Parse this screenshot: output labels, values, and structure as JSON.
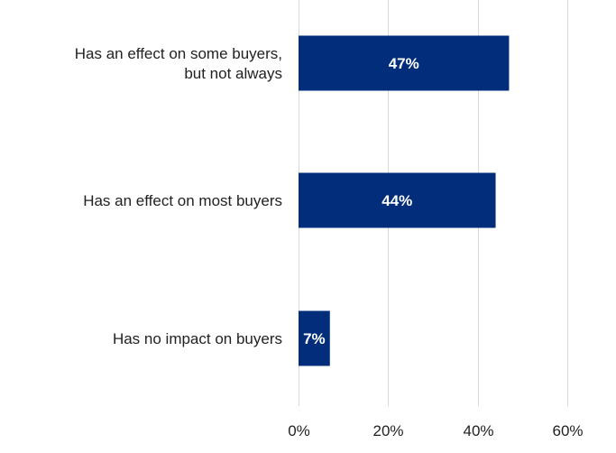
{
  "chart_data": {
    "type": "bar",
    "orientation": "horizontal",
    "categories": [
      [
        "Has an effect on some buyers,",
        "but not always"
      ],
      [
        "Has an effect on most buyers"
      ],
      [
        "Has no impact on buyers"
      ]
    ],
    "values": [
      47,
      44,
      7
    ],
    "data_labels": [
      "47%",
      "44%",
      "7%"
    ],
    "x_ticks": [
      "0%",
      "20%",
      "40%",
      "60%"
    ],
    "x_tick_values": [
      0,
      20,
      40,
      60
    ],
    "xlim": [
      0,
      60
    ],
    "title": "",
    "xlabel": "",
    "ylabel": "",
    "grid": true,
    "legend": "none",
    "colors": {
      "bar": "#022d7a",
      "bar_label": "#ffffff",
      "grid": "#d9d9d9",
      "text": "#222222"
    }
  }
}
